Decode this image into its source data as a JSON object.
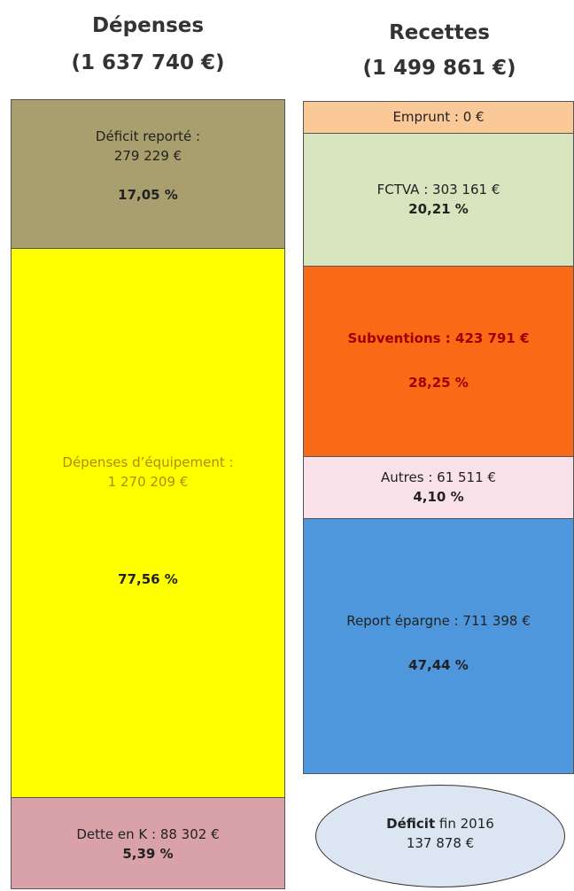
{
  "columns": [
    {
      "title": "Dépenses",
      "total": "(1 637 740 €)",
      "segments": [
        {
          "label": "Déficit reporté :",
          "amount": "279 229 €",
          "percent": "17,05 %"
        },
        {
          "label": "Dépenses d’équipement :",
          "amount": "1 270 209 €",
          "percent": "77,56 %"
        },
        {
          "label": "Dette en K : 88 302 €",
          "percent": "5,39 %"
        }
      ]
    },
    {
      "title": "Recettes",
      "total": "(1 499 861 €)",
      "segments": [
        {
          "label": "Emprunt : 0 €"
        },
        {
          "label": "FCTVA : 303 161 €",
          "percent": "20,21 %"
        },
        {
          "label": "Subventions : 423 791 €",
          "percent": "28,25 %"
        },
        {
          "label": "Autres : 61 511 €",
          "percent": "4,10 %"
        },
        {
          "label": "Report épargne : 711 398 €",
          "percent": "47,44 %"
        }
      ]
    }
  ],
  "deficit": {
    "label": "Déficit",
    "suffix": "fin 2016",
    "amount": "137 878 €"
  }
}
